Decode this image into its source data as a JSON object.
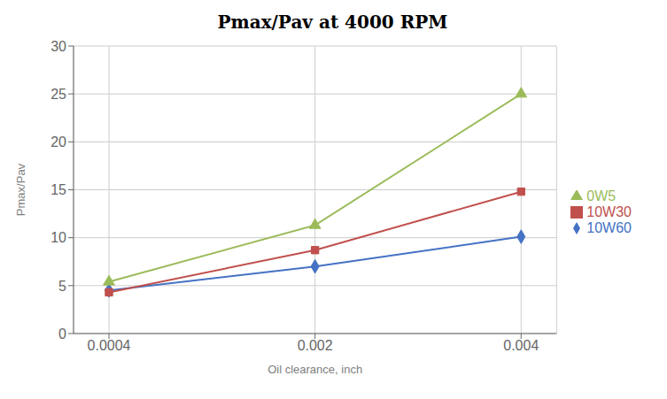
{
  "chart_data": {
    "type": "line",
    "title": "Pmax/Pav at 4000 RPM",
    "xlabel": "Oil clearance, inch",
    "ylabel": "Pmax/Pav",
    "categories": [
      "0.0004",
      "0.002",
      "0.004"
    ],
    "series": [
      {
        "name": "10W60",
        "color": "#4472C4",
        "marker": "diamond",
        "values": [
          4.5,
          7.0,
          10.1
        ]
      },
      {
        "name": "10W30",
        "color": "#C0504D",
        "marker": "square",
        "values": [
          4.3,
          8.7,
          14.8
        ]
      },
      {
        "name": "0W5",
        "color": "#9BBB59",
        "marker": "triangle",
        "values": [
          5.4,
          11.3,
          25.0
        ]
      }
    ],
    "ylim": [
      0,
      30
    ],
    "yticks": [
      0,
      5,
      10,
      15,
      20,
      25,
      30
    ],
    "grid": true,
    "legend": "right"
  }
}
